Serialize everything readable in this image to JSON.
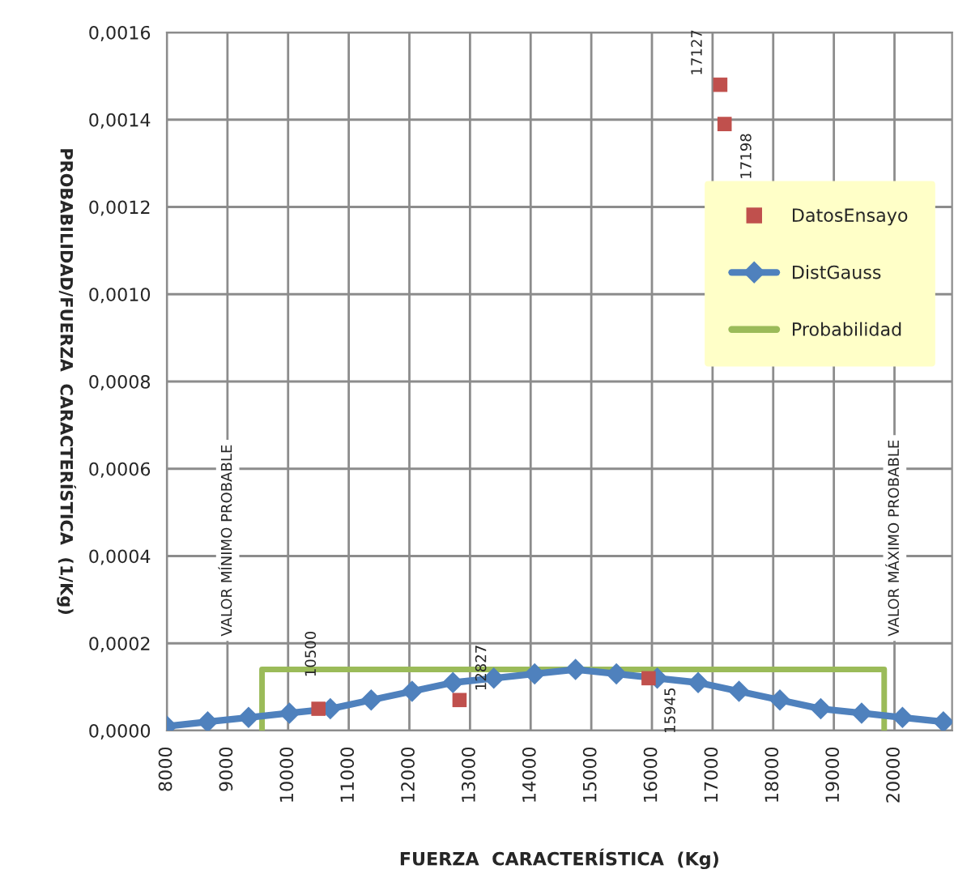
{
  "chart_data": {
    "type": "line",
    "xlabel": "FUERZA  CARACTERÍSTICA  (Kg)",
    "ylabel": "PROBABILIDAD/FUERZA  CARACTERÍSTICA  (1/Kg)",
    "series": [
      {
        "name": "DatosEnsayo",
        "type": "scatter",
        "color": "#c0504d",
        "marker": "square",
        "x": [
          10500,
          12827,
          15945,
          17127,
          17198
        ],
        "values": [
          5e-05,
          7e-05,
          0.00012,
          0.00148,
          0.00139
        ]
      },
      {
        "name": "DistGauss",
        "color": "#4f81bd",
        "marker": "diamond",
        "x": [
          8000,
          8674,
          9348,
          10022,
          10696,
          11370,
          12044,
          12718,
          13392,
          14066,
          14740,
          15414,
          16088,
          16762,
          17436,
          18110,
          18784,
          19458,
          20132,
          20806
        ],
        "values": [
          1e-05,
          2e-05,
          3e-05,
          4e-05,
          5e-05,
          7e-05,
          9e-05,
          0.00011,
          0.00012,
          0.00013,
          0.00014,
          0.00013,
          0.00012,
          0.00011,
          9e-05,
          7e-05,
          5e-05,
          4e-05,
          3e-05,
          2e-05
        ]
      },
      {
        "name": "Probabilidad",
        "color": "#9bbb59",
        "x": [
          9570,
          9570,
          19830,
          19830
        ],
        "values": [
          0,
          0.00014,
          0.00014,
          0
        ]
      }
    ],
    "annotations": [
      {
        "text": "10500",
        "x": 10500,
        "y": 5e-05
      },
      {
        "text": "12827",
        "x": 12827,
        "y": 7e-05
      },
      {
        "text": "15945",
        "x": 15945,
        "y": 0.00012
      },
      {
        "text": "17127",
        "x": 17127,
        "y": 0.00148
      },
      {
        "text": "17198",
        "x": 17198,
        "y": 0.00139
      },
      "VALOR MÍNIMO PROBABLE",
      "VALOR MÁXIMO PROBABLE"
    ],
    "xlim": [
      8000,
      20950
    ],
    "xticks": [
      8000,
      9000,
      10000,
      11000,
      12000,
      13000,
      14000,
      15000,
      16000,
      17000,
      18000,
      19000,
      20000
    ],
    "ylim": [
      0,
      0.0016
    ],
    "yticks": [
      {
        "value": 0,
        "label": "0,0000"
      },
      {
        "value": 0.0002,
        "label": "0,0002"
      },
      {
        "value": 0.0004,
        "label": "0,0004"
      },
      {
        "value": 0.0006,
        "label": "0,0006"
      },
      {
        "value": 0.0008,
        "label": "0,0008"
      },
      {
        "value": 0.001,
        "label": "0,0010"
      },
      {
        "value": 0.0012,
        "label": "0,0012"
      },
      {
        "value": 0.0014,
        "label": "0,0014"
      },
      {
        "value": 0.0016,
        "label": "0,0016"
      }
    ],
    "grid": true,
    "legend": "top right"
  }
}
